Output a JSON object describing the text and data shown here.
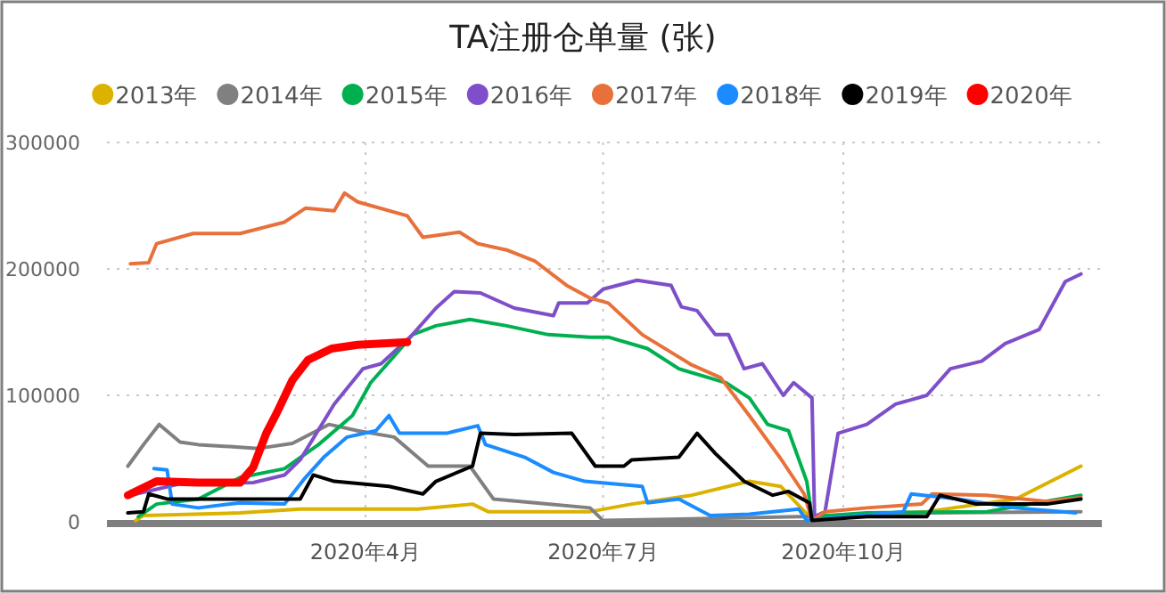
{
  "chart_data": {
    "type": "line",
    "title": "TA注册仓单量 (张)",
    "xlim": [
      "2019-12-24",
      "2021-01-08"
    ],
    "xticks": [
      {
        "value": "2020-04-01",
        "label": "2020年4月"
      },
      {
        "value": "2020-07-01",
        "label": "2020年7月"
      },
      {
        "value": "2020-10-01",
        "label": "2020年10月"
      }
    ],
    "ylim": [
      0,
      300000
    ],
    "yticks": [
      0,
      100000,
      200000,
      300000
    ],
    "grid": true,
    "legend": "top",
    "marker": "none",
    "line_style": "solid",
    "series": [
      {
        "name": "2013年",
        "color": "#dcb200",
        "x": [
          "2020-01-04",
          "2020-01-07",
          "2020-02-13",
          "2020-03-07",
          "2020-04-21",
          "2020-05-12",
          "2020-05-18",
          "2020-06-26",
          "2020-07-12",
          "2020-08-04",
          "2020-08-26",
          "2020-09-07",
          "2020-09-18",
          "2020-11-02",
          "2020-12-06",
          "2020-12-31"
        ],
        "values": [
          1000,
          5000,
          7000,
          10000,
          10000,
          14000,
          8000,
          8000,
          14000,
          21000,
          32000,
          28000,
          4000,
          8000,
          18000,
          44000
        ]
      },
      {
        "name": "2014年",
        "color": "#808080",
        "x": [
          "2020-01-01",
          "2020-01-07",
          "2020-01-13",
          "2020-01-21",
          "2020-01-28",
          "2020-02-20",
          "2020-03-04",
          "2020-03-18",
          "2020-03-29",
          "2020-04-12",
          "2020-04-25",
          "2020-05-11",
          "2020-05-20",
          "2020-06-05",
          "2020-06-26",
          "2020-07-01",
          "2020-09-14",
          "2020-09-18",
          "2020-11-02",
          "2020-12-31"
        ],
        "values": [
          44000,
          61000,
          77000,
          63000,
          61000,
          58000,
          62000,
          77000,
          72000,
          67000,
          44000,
          44000,
          18000,
          15000,
          11000,
          1000,
          4000,
          4000,
          7000,
          8000
        ]
      },
      {
        "name": "2015年",
        "color": "#00b050",
        "x": [
          "2020-01-05",
          "2020-01-12",
          "2020-01-28",
          "2020-02-13",
          "2020-03-01",
          "2020-03-14",
          "2020-03-27",
          "2020-04-03",
          "2020-04-12",
          "2020-04-19",
          "2020-04-28",
          "2020-05-11",
          "2020-05-25",
          "2020-06-10",
          "2020-06-26",
          "2020-07-03",
          "2020-07-18",
          "2020-07-30",
          "2020-08-17",
          "2020-08-26",
          "2020-09-02",
          "2020-09-10",
          "2020-09-17",
          "2020-09-19",
          "2020-10-10",
          "2020-11-25",
          "2020-12-31"
        ],
        "values": [
          4000,
          14000,
          18000,
          35000,
          42000,
          61000,
          84000,
          110000,
          131000,
          148000,
          155000,
          160000,
          155000,
          148000,
          146000,
          146000,
          137000,
          121000,
          110000,
          98000,
          77000,
          72000,
          32000,
          4000,
          7000,
          8000,
          21000
        ]
      },
      {
        "name": "2016年",
        "color": "#7e4fc9",
        "x": [
          "2020-01-02",
          "2020-01-21",
          "2020-02-18",
          "2020-03-01",
          "2020-03-07",
          "2020-03-20",
          "2020-03-31",
          "2020-04-07",
          "2020-04-19",
          "2020-04-28",
          "2020-05-05",
          "2020-05-15",
          "2020-05-28",
          "2020-06-12",
          "2020-06-14",
          "2020-06-25",
          "2020-07-01",
          "2020-07-14",
          "2020-07-27",
          "2020-07-31",
          "2020-08-06",
          "2020-08-13",
          "2020-08-18",
          "2020-08-24",
          "2020-08-31",
          "2020-09-08",
          "2020-09-12",
          "2020-09-19",
          "2020-09-20",
          "2020-09-24",
          "2020-09-29",
          "2020-10-10",
          "2020-10-21",
          "2020-11-02",
          "2020-11-11",
          "2020-11-23",
          "2020-12-02",
          "2020-12-15",
          "2020-12-25",
          "2020-12-31"
        ],
        "values": [
          21000,
          30000,
          31000,
          37000,
          49000,
          93000,
          121000,
          125000,
          148000,
          169000,
          182000,
          181000,
          169000,
          163000,
          173000,
          173000,
          184000,
          191000,
          187000,
          170000,
          167000,
          148000,
          148000,
          121000,
          125000,
          100000,
          110000,
          98000,
          4000,
          8000,
          70000,
          77000,
          93000,
          100000,
          121000,
          127000,
          141000,
          152000,
          190000,
          196000
        ]
      },
      {
        "name": "2017年",
        "color": "#e8703a",
        "x": [
          "2020-01-02",
          "2020-01-09",
          "2020-01-12",
          "2020-01-26",
          "2020-02-13",
          "2020-03-01",
          "2020-03-09",
          "2020-03-20",
          "2020-03-24",
          "2020-03-29",
          "2020-04-17",
          "2020-04-23",
          "2020-05-07",
          "2020-05-14",
          "2020-05-25",
          "2020-06-05",
          "2020-06-17",
          "2020-06-26",
          "2020-07-03",
          "2020-07-16",
          "2020-08-04",
          "2020-08-15",
          "2020-08-26",
          "2020-09-07",
          "2020-09-16",
          "2020-09-19",
          "2020-09-24",
          "2020-10-10",
          "2020-10-31",
          "2020-11-04",
          "2020-11-25",
          "2020-12-18",
          "2020-12-31"
        ],
        "values": [
          204000,
          205000,
          220000,
          228000,
          228000,
          237000,
          248000,
          246000,
          260000,
          253000,
          242000,
          225000,
          229000,
          220000,
          215000,
          206000,
          187000,
          177000,
          173000,
          148000,
          124000,
          114000,
          84000,
          50000,
          22000,
          1000,
          8000,
          11000,
          14000,
          22000,
          21000,
          16000,
          19000
        ]
      },
      {
        "name": "2018年",
        "color": "#1a8cff",
        "x": [
          "2020-01-11",
          "2020-01-16",
          "2020-01-18",
          "2020-01-28",
          "2020-02-13",
          "2020-03-01",
          "2020-03-09",
          "2020-03-16",
          "2020-03-25",
          "2020-04-05",
          "2020-04-10",
          "2020-04-14",
          "2020-05-02",
          "2020-05-14",
          "2020-05-17",
          "2020-06-01",
          "2020-06-12",
          "2020-06-24",
          "2020-07-16",
          "2020-07-18",
          "2020-07-30",
          "2020-08-11",
          "2020-08-26",
          "2020-09-14",
          "2020-09-17",
          "2020-10-24",
          "2020-10-27",
          "2020-11-14",
          "2020-12-06",
          "2020-12-29"
        ],
        "values": [
          42000,
          41000,
          14000,
          11000,
          15000,
          14000,
          35000,
          51000,
          67000,
          72000,
          84000,
          70000,
          70000,
          76000,
          61000,
          51000,
          39000,
          32000,
          28000,
          15000,
          18000,
          5000,
          6000,
          10000,
          1000,
          8000,
          22000,
          18000,
          11000,
          7000
        ]
      },
      {
        "name": "2019年",
        "color": "#000000",
        "x": [
          "2020-01-01",
          "2020-01-07",
          "2020-01-09",
          "2020-01-16",
          "2020-03-07",
          "2020-03-12",
          "2020-03-20",
          "2020-04-10",
          "2020-04-23",
          "2020-04-28",
          "2020-05-12",
          "2020-05-15",
          "2020-05-28",
          "2020-06-19",
          "2020-06-28",
          "2020-07-09",
          "2020-07-12",
          "2020-07-30",
          "2020-08-06",
          "2020-08-13",
          "2020-08-24",
          "2020-09-04",
          "2020-09-10",
          "2020-09-18",
          "2020-09-19",
          "2020-10-10",
          "2020-11-02",
          "2020-11-07",
          "2020-11-21",
          "2020-12-18",
          "2020-12-31"
        ],
        "values": [
          7000,
          8000,
          22000,
          18000,
          18000,
          37000,
          32000,
          28000,
          22000,
          32000,
          44000,
          70000,
          69000,
          70000,
          44000,
          44000,
          49000,
          51000,
          70000,
          54000,
          32000,
          21000,
          24000,
          15000,
          1000,
          4000,
          4000,
          21000,
          14000,
          14000,
          18000
        ]
      },
      {
        "name": "2020年",
        "color": "#ff0000",
        "x": [
          "2020-01-01",
          "2020-01-12",
          "2020-01-28",
          "2020-02-13",
          "2020-02-18",
          "2020-02-23",
          "2020-02-27",
          "2020-03-04",
          "2020-03-10",
          "2020-03-19",
          "2020-03-29",
          "2020-04-17"
        ],
        "values": [
          21000,
          32000,
          31000,
          31000,
          43000,
          70000,
          86000,
          112000,
          128000,
          137000,
          140000,
          142000
        ]
      }
    ]
  }
}
